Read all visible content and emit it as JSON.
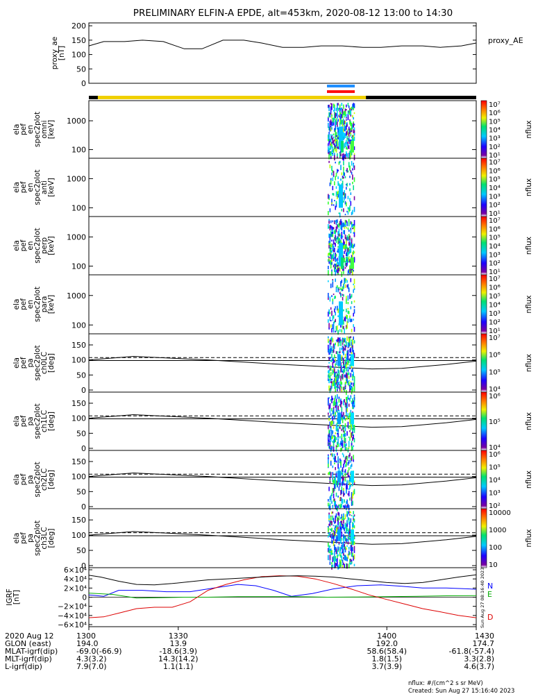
{
  "title": "PRELIMINARY ELFIN-A EPDE, alt=453km, 2020-08-12 13:00 to 14:30",
  "footer": {
    "units": "nflux: #/(cm^2 s sr MeV)",
    "created": "Created: Sun Aug 27 15:16:40 2023",
    "vertical_stamp": "Sun Aug 27 08:16:40 2023"
  },
  "orbit_table": {
    "rows": [
      {
        "label": "2020 Aug 12",
        "values": [
          "1300",
          "1330",
          "1400",
          "1430"
        ]
      },
      {
        "label": "GLON (east)",
        "values": [
          "194.0",
          "13.9",
          "192.0",
          "174.7"
        ]
      },
      {
        "label": "MLAT-igrf(dip)",
        "values": [
          "-69.0(-66.9)",
          "-18.6(3.9)",
          "58.6(58.4)",
          "-61.8(-57.4)"
        ]
      },
      {
        "label": "MLT-igrf(dip)",
        "values": [
          "4.3(3.2)",
          "14.3(14.2)",
          "1.8(1.5)",
          "3.3(2.8)"
        ]
      },
      {
        "label": "L-igrf(dip)",
        "values": [
          "7.9(7.0)",
          "1.1(1.1)",
          "3.7(3.9)",
          "4.6(3.7)"
        ]
      }
    ]
  },
  "colors": {
    "spin_bar": "#000000",
    "science_bar": "#f0d000",
    "blue_bar": "#1f8fff",
    "red_bar": "#ff1010",
    "bz": "#000000",
    "bn": "#0000ff",
    "be": "#00aa00",
    "bd": "#dd0000"
  },
  "chart_data": [
    {
      "type": "line",
      "panel": "proxy_ae",
      "ylabel": [
        "proxy_ae",
        "[nT]"
      ],
      "legend": "proxy_AE",
      "yticks": [
        "200",
        "150",
        "100",
        "50",
        "0"
      ],
      "ylim": [
        0,
        210
      ],
      "x": [
        1300,
        1305,
        1312,
        1318,
        1325,
        1332,
        1338,
        1345,
        1352,
        1358,
        1365,
        1372,
        1378,
        1385,
        1392,
        1398,
        1405,
        1412,
        1418,
        1425,
        1430
      ],
      "values": [
        130,
        145,
        145,
        150,
        145,
        120,
        120,
        150,
        150,
        140,
        125,
        125,
        130,
        130,
        125,
        125,
        130,
        130,
        125,
        130,
        140
      ]
    },
    {
      "type": "heatmap",
      "panel": "omni",
      "ylabel": [
        "ela",
        "pef",
        "en",
        "spec2plot",
        "omni",
        "[keV]"
      ],
      "yticks": [
        "1000",
        "100"
      ],
      "colorbar_label": "nflux",
      "colorbar_ticks": [
        "10⁷",
        "10⁶",
        "10⁵",
        "10⁴",
        "10³",
        "10²",
        "10¹"
      ]
    },
    {
      "type": "heatmap",
      "panel": "anti",
      "ylabel": [
        "ela",
        "pef",
        "en",
        "spec2plot",
        "anti",
        "[keV]"
      ],
      "yticks": [
        "1000",
        "100"
      ],
      "colorbar_label": "nflux",
      "colorbar_ticks": [
        "10⁷",
        "10⁶",
        "10⁵",
        "10⁴",
        "10³",
        "10²",
        "10¹"
      ]
    },
    {
      "type": "heatmap",
      "panel": "perp",
      "ylabel": [
        "ela",
        "pef",
        "en",
        "spec2plot",
        "perp",
        "[keV]"
      ],
      "yticks": [
        "1000",
        "100"
      ],
      "colorbar_label": "nflux",
      "colorbar_ticks": [
        "10⁷",
        "10⁶",
        "10⁵",
        "10⁴",
        "10³",
        "10²",
        "10¹"
      ]
    },
    {
      "type": "heatmap",
      "panel": "para",
      "ylabel": [
        "ela",
        "pef",
        "en",
        "spec2plot",
        "para",
        "[keV]"
      ],
      "yticks": [
        "1000",
        "100"
      ],
      "colorbar_label": "nflux",
      "colorbar_ticks": [
        "10⁷",
        "10⁶",
        "10⁵",
        "10⁴",
        "10³",
        "10²",
        "10¹"
      ]
    },
    {
      "type": "heatmap",
      "panel": "ch0LC",
      "ylabel": [
        "ela",
        "pef",
        "pa",
        "spec2plot",
        "ch0LC",
        "[deg]"
      ],
      "yticks": [
        "150",
        "100",
        "50",
        "0"
      ],
      "colorbar_label": "nflux",
      "colorbar_ticks": [
        "10⁷",
        "10⁶",
        "10⁵",
        "10⁴"
      ]
    },
    {
      "type": "heatmap",
      "panel": "ch1LC",
      "ylabel": [
        "ela",
        "pef",
        "pa",
        "spec2plot",
        "ch1LC",
        "[deg]"
      ],
      "yticks": [
        "150",
        "100",
        "50",
        "0"
      ],
      "colorbar_label": "nflux",
      "colorbar_ticks": [
        "10⁶",
        "10⁵",
        "10⁴"
      ]
    },
    {
      "type": "heatmap",
      "panel": "ch2LC",
      "ylabel": [
        "ela",
        "pef",
        "pa",
        "spec2plot",
        "ch2LC",
        "[deg]"
      ],
      "yticks": [
        "150",
        "100",
        "50",
        "0"
      ],
      "colorbar_label": "nflux",
      "colorbar_ticks": [
        "10⁶",
        "10⁵",
        "10⁴",
        "10³",
        "10²"
      ]
    },
    {
      "type": "heatmap",
      "panel": "ch3LC",
      "ylabel": [
        "ela",
        "pef",
        "pa",
        "spec2plot",
        "ch3LC",
        "[deg]"
      ],
      "yticks": [
        "150",
        "100",
        "50",
        "0"
      ],
      "colorbar_label": "nflux",
      "colorbar_ticks": [
        "10000",
        "1000",
        "100",
        "10"
      ]
    },
    {
      "type": "line",
      "panel": "igrf",
      "ylabel": [
        "IGRF",
        "[nT]"
      ],
      "yticks": [
        "6×10⁴",
        "4×10⁴",
        "2×10⁴",
        "0",
        "−2×10⁴",
        "−4×10⁴",
        "−6×10⁴"
      ],
      "ylim": [
        -60000,
        60000
      ],
      "series": [
        {
          "name": "N",
          "color": "#0000ff",
          "x": [
            1300,
            1305,
            1310,
            1318,
            1326,
            1334,
            1342,
            1350,
            1356,
            1362,
            1368,
            1375,
            1382,
            1390,
            1398,
            1405,
            1412,
            1420,
            1428,
            1430
          ],
          "values": [
            5000,
            2000,
            15000,
            15000,
            12000,
            12000,
            20000,
            28000,
            25000,
            15000,
            2000,
            8000,
            18000,
            25000,
            27000,
            24000,
            20000,
            20000,
            18000,
            17000
          ]
        },
        {
          "name": "E",
          "color": "#00aa00",
          "x": [
            1300,
            1308,
            1316,
            1324,
            1332,
            1340,
            1350,
            1360,
            1370,
            1380,
            1390,
            1400,
            1410,
            1420,
            1430
          ],
          "values": [
            9000,
            6000,
            -2000,
            -1000,
            0,
            0,
            1000,
            1000,
            1000,
            0,
            500,
            1000,
            2000,
            3000,
            3500
          ]
        },
        {
          "name": "D",
          "color": "#dd0000",
          "x": [
            1300,
            1305,
            1310,
            1316,
            1322,
            1328,
            1334,
            1340,
            1346,
            1352,
            1358,
            1364,
            1370,
            1376,
            1382,
            1388,
            1394,
            1400,
            1406,
            1412,
            1418,
            1424,
            1430
          ],
          "values": [
            -45000,
            -43000,
            -35000,
            -25000,
            -22000,
            -22000,
            -10000,
            15000,
            28000,
            38000,
            45000,
            47000,
            46000,
            40000,
            30000,
            18000,
            5000,
            -5000,
            -15000,
            -25000,
            -32000,
            -40000,
            -45000
          ]
        },
        {
          "color": "#000000",
          "x": [
            1300,
            1304,
            1310,
            1316,
            1322,
            1328,
            1334,
            1340,
            1346,
            1352,
            1358,
            1364,
            1370,
            1376,
            1382,
            1388,
            1394,
            1400,
            1406,
            1412,
            1418,
            1424,
            1430
          ],
          "values": [
            48000,
            44000,
            35000,
            28000,
            27000,
            30000,
            34000,
            38000,
            40000,
            42000,
            44000,
            46000,
            47000,
            46000,
            44000,
            40000,
            36000,
            32000,
            30000,
            32000,
            38000,
            44000,
            49000
          ]
        }
      ]
    }
  ]
}
